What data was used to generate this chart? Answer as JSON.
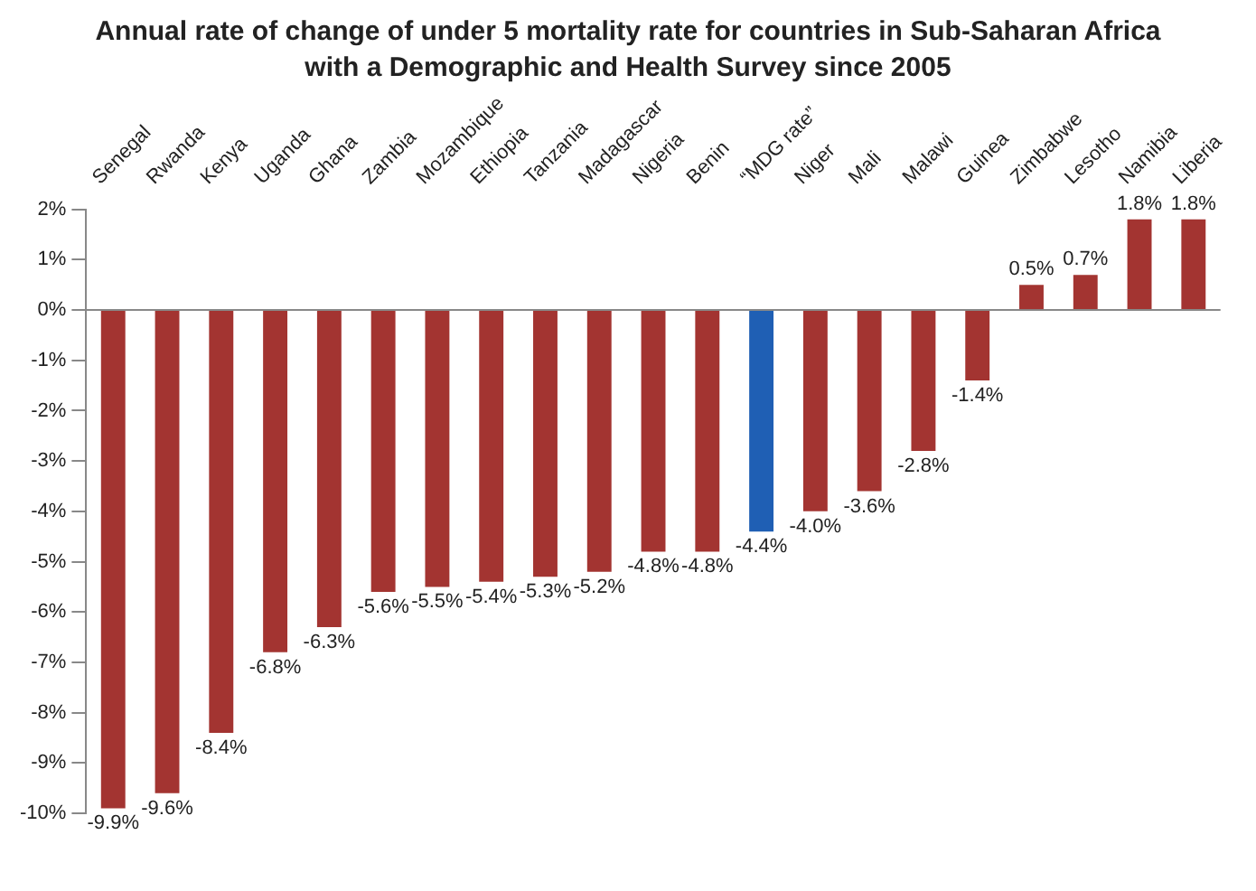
{
  "chart_data": {
    "type": "bar",
    "title": "Annual rate of change of under 5 mortality rate for countries in Sub-Saharan Africa with a Demographic and Health Survey since 2005",
    "categories": [
      "Senegal",
      "Rwanda",
      "Kenya",
      "Uganda",
      "Ghana",
      "Zambia",
      "Mozambique",
      "Ethiopia",
      "Tanzania",
      "Madagascar",
      "Nigeria",
      "Benin",
      "“MDG rate”",
      "Niger",
      "Mali",
      "Malawi",
      "Guinea",
      "Zimbabwe",
      "Lesotho",
      "Namibia",
      "Liberia"
    ],
    "values": [
      -9.9,
      -9.6,
      -8.4,
      -6.8,
      -6.3,
      -5.6,
      -5.5,
      -5.4,
      -5.3,
      -5.2,
      -4.8,
      -4.8,
      -4.4,
      -4.0,
      -3.6,
      -2.8,
      -1.4,
      0.5,
      0.7,
      1.8,
      1.8
    ],
    "colors": [
      "#a33431",
      "#a33431",
      "#a33431",
      "#a33431",
      "#a33431",
      "#a33431",
      "#a33431",
      "#a33431",
      "#a33431",
      "#a33431",
      "#a33431",
      "#a33431",
      "#1f5fb4",
      "#a33431",
      "#a33431",
      "#a33431",
      "#a33431",
      "#a33431",
      "#a33431",
      "#a33431",
      "#a33431"
    ],
    "value_labels": [
      "-9.9%",
      "-9.6%",
      "-8.4%",
      "-6.8%",
      "-6.3%",
      "-5.6%",
      "-5.5%",
      "-5.4%",
      "-5.3%",
      "-5.2%",
      "-4.8%",
      "-4.8%",
      "-4.4%",
      "-4.0%",
      "-3.6%",
      "-2.8%",
      "-1.4%",
      "0.5%",
      "0.7%",
      "1.8%",
      "1.8%"
    ],
    "ylim": [
      -10,
      2
    ],
    "yticks": [
      {
        "value": 2,
        "label": "2%"
      },
      {
        "value": 1,
        "label": "1%"
      },
      {
        "value": 0,
        "label": "0%"
      },
      {
        "value": -1,
        "label": "-1%"
      },
      {
        "value": -2,
        "label": "-2%"
      },
      {
        "value": -3,
        "label": "-3%"
      },
      {
        "value": -4,
        "label": "-4%"
      },
      {
        "value": -5,
        "label": "-5%"
      },
      {
        "value": -6,
        "label": "-6%"
      },
      {
        "value": -7,
        "label": "-7%"
      },
      {
        "value": -8,
        "label": "-8%"
      },
      {
        "value": -9,
        "label": "-9%"
      },
      {
        "value": -10,
        "label": "-10%"
      }
    ],
    "legend": false
  }
}
